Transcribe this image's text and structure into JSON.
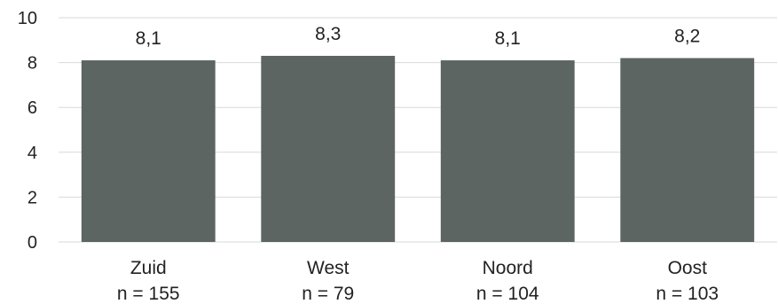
{
  "chart_data": {
    "type": "bar",
    "categories": [
      "Zuid",
      "West",
      "Noord",
      "Oost"
    ],
    "category_sublabels": [
      "n = 155",
      "n = 79",
      "n = 104",
      "n = 103"
    ],
    "values": [
      8.1,
      8.3,
      8.1,
      8.2
    ],
    "data_labels": [
      "8,1",
      "8,3",
      "8,1",
      "8,2"
    ],
    "ylim": [
      0,
      10
    ],
    "yticks": [
      0,
      2,
      4,
      6,
      8,
      10
    ],
    "grid": true,
    "legend": "none",
    "bar_color": "#5d6563",
    "grid_color": "#d9d9d9"
  }
}
